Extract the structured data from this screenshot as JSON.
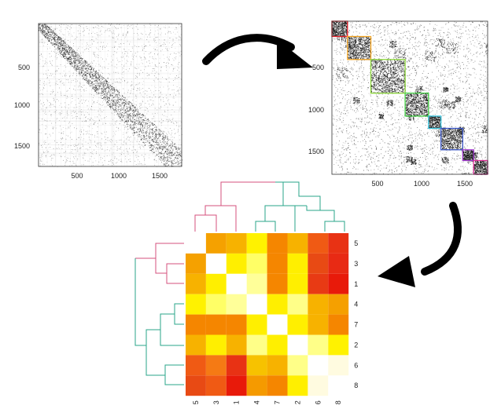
{
  "panels": {
    "raw_matrix": {
      "y_ticks": [
        "500",
        "1000",
        "1500"
      ],
      "x_ticks": [
        "500",
        "1000",
        "1500"
      ]
    },
    "clustered_matrix": {
      "y_ticks": [
        "500",
        "1000",
        "1500"
      ],
      "x_ticks": [
        "500",
        "1000",
        "1500"
      ],
      "cluster_box_colors": [
        "#e8202a",
        "#f5a623",
        "#8cd63a",
        "#49d64a",
        "#39c6e0",
        "#3b57c9",
        "#a23ad0",
        "#e0309a"
      ]
    }
  },
  "heatmap": {
    "row_labels": [
      "5",
      "3",
      "1",
      "4",
      "7",
      "2",
      "6",
      "8"
    ],
    "col_labels": [
      "5",
      "3",
      "1",
      "4",
      "7",
      "2",
      "6",
      "8"
    ],
    "branch_colors": {
      "top": "#d4507e",
      "bottom": "#2aa58a"
    },
    "cells": [
      [
        null,
        "#f5a100",
        "#f7b200",
        "#fff200",
        "#f58600",
        "#f7b200",
        "#f05a14",
        "#e83214"
      ],
      [
        "#f5a100",
        null,
        "#ffef00",
        "#ffff66",
        "#f58600",
        "#ffef00",
        "#e84a14",
        "#e82a14"
      ],
      [
        "#f7b200",
        "#ffef00",
        null,
        "#ffff99",
        "#f58600",
        "#ffef00",
        "#e83a14",
        "#e81a0a"
      ],
      [
        "#fff200",
        "#ffff66",
        "#ffff99",
        null,
        "#ffef00",
        "#ffff88",
        "#f7b200",
        "#f5a000"
      ],
      [
        "#f58600",
        "#f58600",
        "#f58600",
        "#ffef00",
        null,
        "#ffef00",
        "#f7b200",
        "#f58600"
      ],
      [
        "#f7b200",
        "#ffef00",
        "#f7b200",
        "#ffff88",
        "#ffef00",
        null,
        "#ffff88",
        "#fff200"
      ],
      [
        "#f05a14",
        "#f57a14",
        "#e83214",
        "#f7c200",
        "#f7b200",
        "#ffff88",
        null,
        "#fffbe0"
      ],
      [
        "#e84a14",
        "#f05a14",
        "#e81a0a",
        "#f59a00",
        "#f58600",
        "#ffef00",
        "#fffbe0",
        null
      ]
    ]
  }
}
